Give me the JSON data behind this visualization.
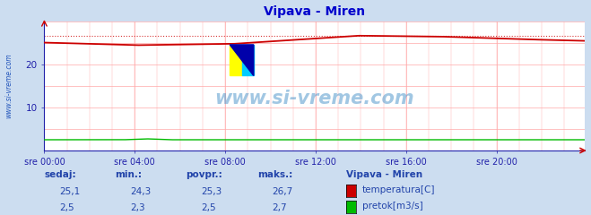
{
  "title": "Vipava - Miren",
  "title_color": "#0000cc",
  "bg_color": "#ccddf0",
  "plot_bg_color": "#ffffff",
  "grid_color": "#ffaaaa",
  "border_color": "#2222aa",
  "xlim": [
    0,
    287
  ],
  "ylim": [
    0,
    30
  ],
  "yticks": [
    10,
    20
  ],
  "xtick_labels": [
    "sre 00:00",
    "sre 04:00",
    "sre 08:00",
    "sre 12:00",
    "sre 16:00",
    "sre 20:00"
  ],
  "xtick_positions": [
    0,
    48,
    96,
    144,
    192,
    240
  ],
  "temp_color": "#cc0000",
  "flow_color": "#00bb00",
  "temp_avg": 25.3,
  "temp_min": 24.3,
  "temp_max": 26.7,
  "temp_current": 25.1,
  "flow_avg": 2.5,
  "flow_min": 2.3,
  "flow_max": 2.7,
  "flow_current": 2.5,
  "watermark": "www.si-vreme.com",
  "watermark_color": "#5599cc",
  "sidebar_text": "www.si-vreme.com",
  "sidebar_color": "#2255bb",
  "table_header_color": "#2244aa",
  "table_value_color": "#2244aa"
}
